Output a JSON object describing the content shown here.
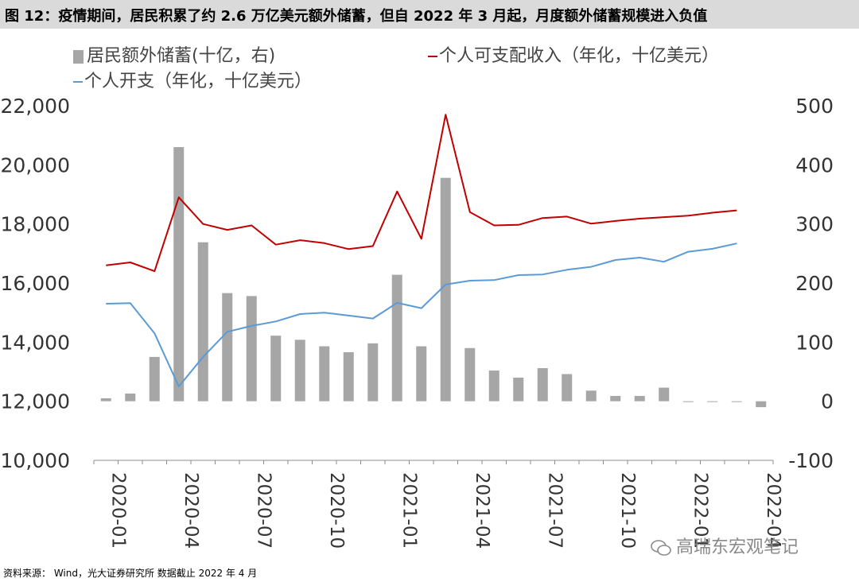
{
  "figure_title": "图 12：疫情期间，居民积累了约 2.6 万亿美元额外储蓄，但自 2022 年 3 月起，月度额外储蓄规模进入负值",
  "source_note": "资料来源： Wind，光大证券研究所 数据截止 2022 年 4 月",
  "watermark": "高瑞东宏观笔记",
  "colors": {
    "bar": "#a6a6a6",
    "income": "#c00000",
    "spending": "#5b9bd5",
    "axis": "#8c8c8c"
  },
  "chart_data": {
    "type": "bar+line",
    "legend_placement": "top-left",
    "grid": false,
    "x": [
      "2020-01",
      "2020-02",
      "2020-03",
      "2020-04",
      "2020-05",
      "2020-06",
      "2020-07",
      "2020-08",
      "2020-09",
      "2020-10",
      "2020-11",
      "2020-12",
      "2021-01",
      "2021-02",
      "2021-03",
      "2021-04",
      "2021-05",
      "2021-06",
      "2021-07",
      "2021-08",
      "2021-09",
      "2021-10",
      "2021-11",
      "2021-12",
      "2022-01",
      "2022-02",
      "2022-03",
      "2022-04"
    ],
    "x_tick_labels": [
      "2020-01",
      "2020-04",
      "2020-07",
      "2020-10",
      "2021-01",
      "2021-04",
      "2021-07",
      "2021-10",
      "2022-01",
      "2022-04"
    ],
    "y_left": {
      "ylim": [
        10000,
        22000
      ],
      "ticks": [
        "10,000",
        "12,000",
        "14,000",
        "16,000",
        "18,000",
        "20,000",
        "22,000"
      ]
    },
    "y_right": {
      "ylim": [
        -100,
        500
      ],
      "ticks": [
        "-100",
        "0",
        "100",
        "200",
        "300",
        "400",
        "500"
      ]
    },
    "series": [
      {
        "name": "居民额外储蓄(十亿，右)",
        "type": "bar",
        "axis": "right",
        "values": [
          5,
          13,
          75,
          430,
          269,
          183,
          178,
          111,
          104,
          93,
          83,
          98,
          214,
          93,
          378,
          90,
          52,
          40,
          56,
          46,
          18,
          9,
          9,
          23,
          -1,
          -1,
          -1,
          -10
        ]
      },
      {
        "name": "个人可支配收入（年化，十亿美元）",
        "type": "line",
        "axis": "left",
        "values": [
          16600,
          16700,
          16400,
          18900,
          18000,
          17800,
          17950,
          17300,
          17450,
          17350,
          17150,
          17250,
          19100,
          17500,
          21700,
          18400,
          17950,
          17970,
          18200,
          18250,
          18010,
          18100,
          18180,
          18230,
          18280,
          18380,
          18460,
          null
        ]
      },
      {
        "name": "个人开支（年化，十亿美元）",
        "type": "line",
        "axis": "left",
        "values": [
          15300,
          15320,
          14300,
          12500,
          13500,
          14350,
          14550,
          14700,
          14950,
          15000,
          14900,
          14800,
          15330,
          15150,
          15950,
          16080,
          16100,
          16270,
          16290,
          16450,
          16550,
          16780,
          16860,
          16720,
          17060,
          17160,
          17340,
          null
        ]
      }
    ]
  }
}
